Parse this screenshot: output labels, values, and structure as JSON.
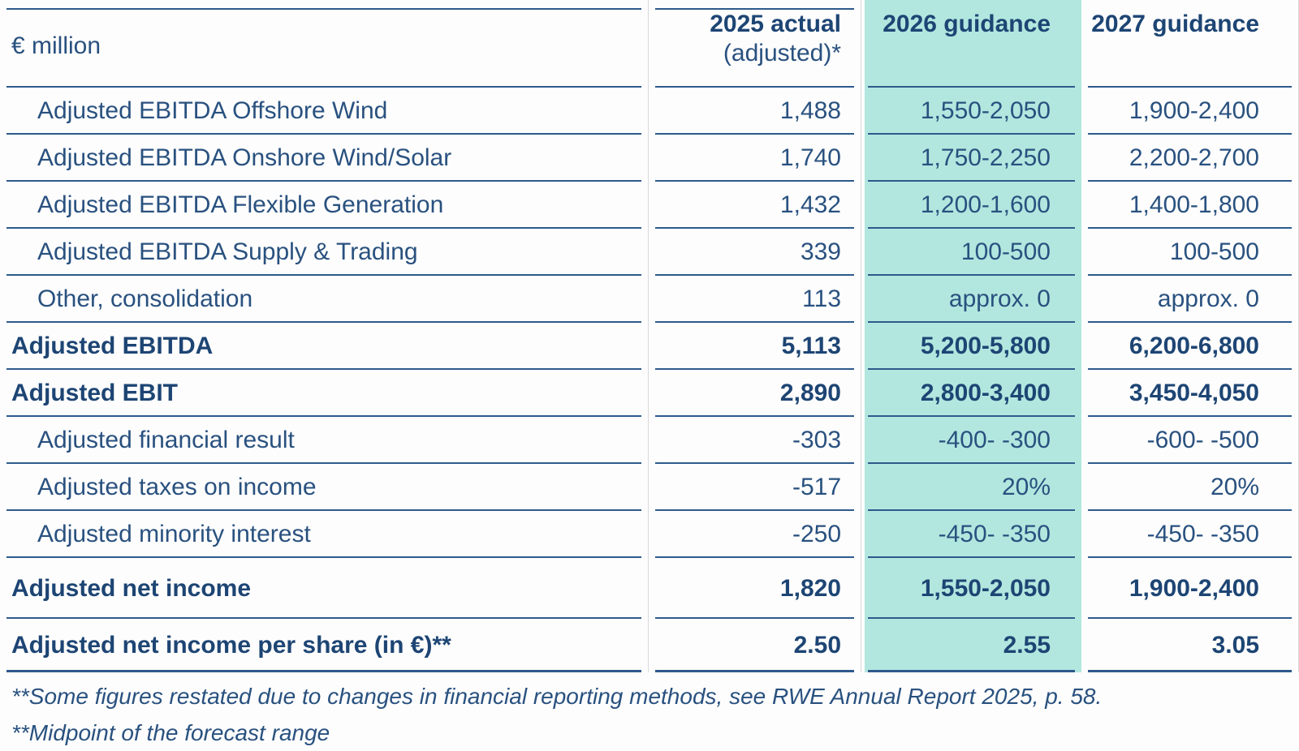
{
  "colors": {
    "page_bg": "#fdfdfd",
    "teal_highlight": "#b2e7df",
    "text_navy": "#29517f",
    "text_navy_bold": "#1d4574",
    "line_navy": "#2e5a8c",
    "separator_gray": "#d9d9d9"
  },
  "table": {
    "unit_label": "€ million",
    "column_headers": [
      {
        "title": "2025 actual",
        "subtitle": "(adjusted)*"
      },
      {
        "title": "2026 guidance",
        "subtitle": ""
      },
      {
        "title": "2027 guidance",
        "subtitle": ""
      }
    ],
    "highlighted_column": "2026 guidance",
    "rows": [
      {
        "label": "Adjusted EBITDA Offshore Wind",
        "indent": true,
        "bold": false,
        "values": [
          "1,488",
          "1,550-2,050",
          "1,900-2,400"
        ]
      },
      {
        "label": "Adjusted EBITDA Onshore Wind/Solar",
        "indent": true,
        "bold": false,
        "values": [
          "1,740",
          "1,750-2,250",
          "2,200-2,700"
        ]
      },
      {
        "label": "Adjusted EBITDA Flexible Generation",
        "indent": true,
        "bold": false,
        "values": [
          "1,432",
          "1,200-1,600",
          "1,400-1,800"
        ]
      },
      {
        "label": "Adjusted EBITDA Supply & Trading",
        "indent": true,
        "bold": false,
        "values": [
          "339",
          "100-500",
          "100-500"
        ]
      },
      {
        "label": "Other, consolidation",
        "indent": true,
        "bold": false,
        "values": [
          "113",
          "approx. 0",
          "approx. 0"
        ]
      },
      {
        "label": "Adjusted EBITDA",
        "indent": false,
        "bold": true,
        "values": [
          "5,113",
          "5,200-5,800",
          "6,200-6,800"
        ]
      },
      {
        "label": "Adjusted EBIT",
        "indent": false,
        "bold": true,
        "values": [
          "2,890",
          "2,800-3,400",
          "3,450-4,050"
        ]
      },
      {
        "label": "Adjusted financial result",
        "indent": true,
        "bold": false,
        "values": [
          "-303",
          "-400- -300",
          "-600- -500"
        ]
      },
      {
        "label": "Adjusted taxes on income",
        "indent": true,
        "bold": false,
        "values": [
          "-517",
          "20%",
          "20%"
        ]
      },
      {
        "label": "Adjusted minority interest",
        "indent": true,
        "bold": false,
        "values": [
          "-250",
          "-450- -350",
          "-450- -350"
        ]
      },
      {
        "label": "Adjusted net income",
        "indent": false,
        "bold": true,
        "values": [
          "1,820",
          "1,550-2,050",
          "1,900-2,400"
        ]
      },
      {
        "label": "Adjusted net income per share (in €)**",
        "indent": false,
        "bold": true,
        "values": [
          "2.50",
          "2.55",
          "3.05"
        ]
      }
    ]
  },
  "footnotes": [
    "**Some figures restated due to changes in financial reporting methods, see RWE Annual Report 2025, p. 58.",
    "**Midpoint of the forecast range"
  ]
}
